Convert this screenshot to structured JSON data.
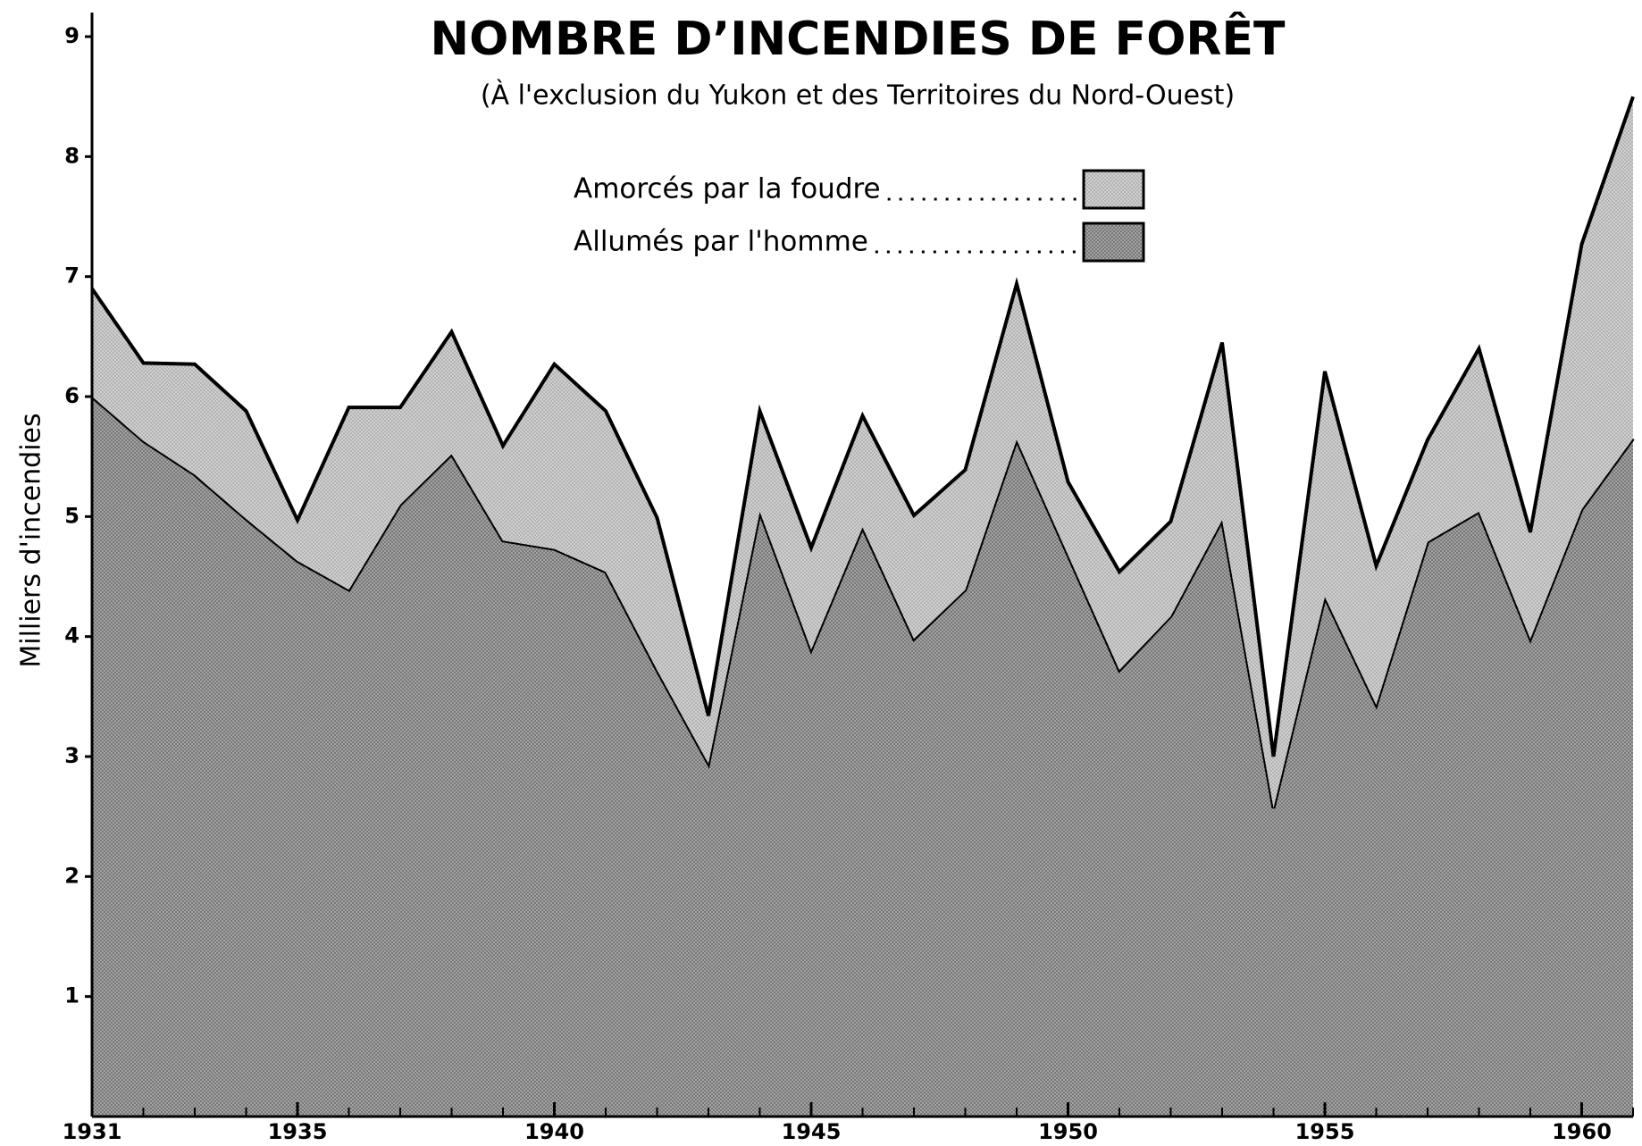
{
  "chart_data": {
    "type": "stacked_area",
    "title": "NOMBRE D’INCENDIES DE FORÊT",
    "subtitle": "(À l'exclusion du Yukon et des Territoires du Nord-Ouest)",
    "y_label": "Milliers d'incendies",
    "x": [
      1931,
      1932,
      1933,
      1934,
      1935,
      1936,
      1937,
      1938,
      1939,
      1940,
      1941,
      1942,
      1943,
      1944,
      1945,
      1946,
      1947,
      1948,
      1949,
      1950,
      1951,
      1952,
      1953,
      1954,
      1955,
      1956,
      1957,
      1958,
      1959,
      1960,
      1961
    ],
    "series": [
      {
        "name": "Amorcés par la foudre",
        "color": "#cfcfcf",
        "values": [
          0.9,
          0.65,
          0.92,
          0.9,
          0.34,
          1.52,
          0.81,
          1.02,
          0.79,
          1.54,
          1.34,
          1.27,
          0.4,
          0.84,
          0.85,
          0.93,
          1.03,
          1.0,
          1.3,
          0.61,
          0.82,
          0.79,
          1.48,
          0.43,
          1.88,
          1.16,
          0.85,
          1.36,
          0.89,
          2.21,
          2.85
        ]
      },
      {
        "name": "Allumés par l'homme",
        "color": "#a3a3a3",
        "values": [
          6.0,
          5.63,
          5.35,
          4.98,
          4.63,
          4.39,
          5.1,
          5.52,
          4.8,
          4.73,
          4.54,
          3.72,
          2.94,
          5.04,
          3.89,
          4.91,
          3.98,
          4.39,
          5.64,
          4.68,
          3.72,
          4.17,
          4.97,
          2.57,
          4.33,
          3.43,
          4.79,
          5.04,
          3.98,
          5.06,
          5.65
        ]
      }
    ],
    "xlim": [
      1931,
      1961
    ],
    "xticks": [
      1931,
      1935,
      1940,
      1945,
      1950,
      1955,
      1960
    ],
    "ylim": [
      0,
      9.2
    ],
    "yticks": [
      1,
      2,
      3,
      4,
      5,
      6,
      7,
      8,
      9
    ],
    "grid": false
  }
}
